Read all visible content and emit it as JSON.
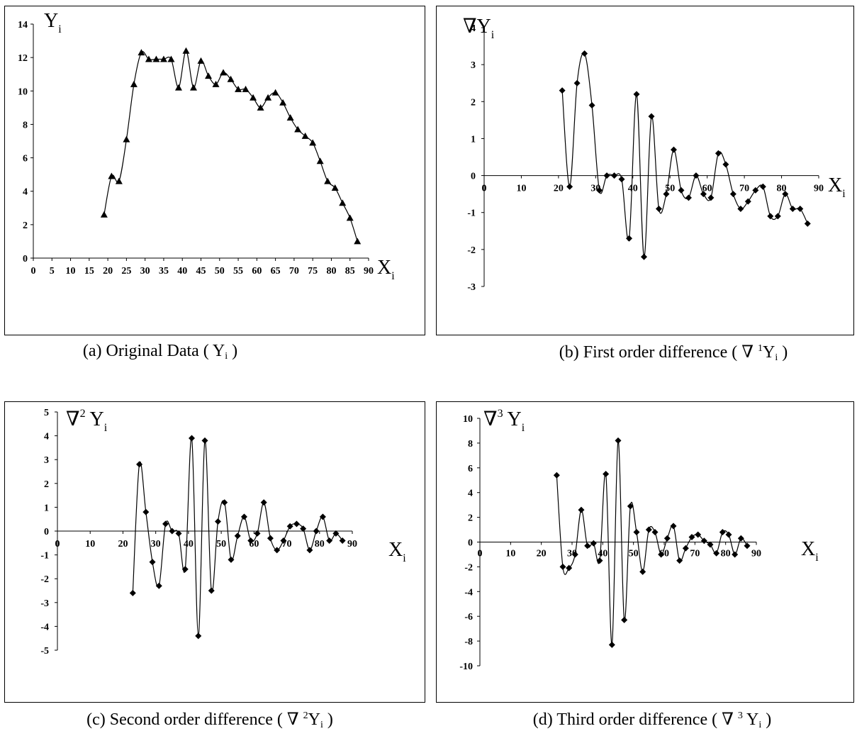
{
  "chart_data": [
    {
      "id": "a",
      "type": "line",
      "marker": "triangle",
      "caption": {
        "pre": "(a) Original Data ( Y",
        "sub": "i",
        "post": " )"
      },
      "ylabel": {
        "main": "Y",
        "sub": "i"
      },
      "xlabel": {
        "main": "X",
        "sub": "i"
      },
      "xlim": [
        0,
        90
      ],
      "ylim": [
        0,
        14
      ],
      "xticks": [
        0,
        5,
        10,
        15,
        20,
        25,
        30,
        35,
        40,
        45,
        50,
        55,
        60,
        65,
        70,
        75,
        80,
        85,
        90
      ],
      "yticks": [
        0,
        2,
        4,
        6,
        8,
        10,
        12,
        14
      ],
      "x": [
        19,
        21,
        23,
        25,
        27,
        29,
        31,
        33,
        35,
        37,
        39,
        41,
        43,
        45,
        47,
        49,
        51,
        53,
        55,
        57,
        59,
        61,
        63,
        65,
        67,
        69,
        71,
        73,
        75,
        77,
        79,
        81,
        83,
        85,
        87
      ],
      "y": [
        2.6,
        4.9,
        4.6,
        7.1,
        10.4,
        12.3,
        11.9,
        11.9,
        11.9,
        11.9,
        10.2,
        12.4,
        10.2,
        11.8,
        10.9,
        10.4,
        11.1,
        10.7,
        10.1,
        10.1,
        9.6,
        9.0,
        9.6,
        9.9,
        9.3,
        8.4,
        7.7,
        7.3,
        6.9,
        5.8,
        4.6,
        4.2,
        3.3,
        2.4,
        1.0
      ]
    },
    {
      "id": "b",
      "type": "line",
      "marker": "diamond",
      "caption": {
        "pre": "(b) First order difference ( ∇ ",
        "sup": "1",
        "mid": "Y",
        "sub": "i",
        "post": " )"
      },
      "ylabel": {
        "main": "∇Y",
        "sub": "i"
      },
      "xlabel": {
        "main": "X",
        "sub": "i"
      },
      "xlim": [
        0,
        90
      ],
      "ylim": [
        -3,
        4
      ],
      "xticks": [
        0,
        10,
        20,
        30,
        40,
        50,
        60,
        70,
        80,
        90
      ],
      "yticks": [
        -3,
        -2,
        -1,
        0,
        1,
        2,
        3,
        4
      ],
      "x": [
        21,
        23,
        25,
        27,
        29,
        31,
        33,
        35,
        37,
        39,
        41,
        43,
        45,
        47,
        49,
        51,
        53,
        55,
        57,
        59,
        61,
        63,
        65,
        67,
        69,
        71,
        73,
        75,
        77,
        79,
        81,
        83,
        85,
        87
      ],
      "y": [
        2.3,
        -0.3,
        2.5,
        3.3,
        1.9,
        -0.4,
        0.0,
        0.0,
        -0.1,
        -1.7,
        2.2,
        -2.2,
        1.6,
        -0.9,
        -0.5,
        0.7,
        -0.4,
        -0.6,
        0.0,
        -0.5,
        -0.6,
        0.6,
        0.3,
        -0.5,
        -0.9,
        -0.7,
        -0.4,
        -0.3,
        -1.1,
        -1.1,
        -0.5,
        -0.9,
        -0.9,
        -1.3
      ]
    },
    {
      "id": "c",
      "type": "line",
      "marker": "diamond",
      "caption": {
        "pre": "(c) Second order difference ( ∇ ",
        "sup": "2",
        "mid": "Y",
        "sub": "i",
        "post": " )"
      },
      "ylabel": {
        "main": "∇",
        "sup": "2",
        "main2": " Y",
        "sub": "i"
      },
      "xlabel": {
        "main": "X",
        "sub": "i"
      },
      "xlim": [
        0,
        90
      ],
      "ylim": [
        -5,
        5
      ],
      "xticks": [
        0,
        10,
        20,
        30,
        40,
        50,
        60,
        70,
        80,
        90
      ],
      "yticks": [
        -5,
        -4,
        -3,
        -2,
        -1,
        0,
        1,
        2,
        3,
        4,
        5
      ],
      "x": [
        23,
        25,
        27,
        29,
        31,
        33,
        35,
        37,
        39,
        41,
        43,
        45,
        47,
        49,
        51,
        53,
        55,
        57,
        59,
        61,
        63,
        65,
        67,
        69,
        71,
        73,
        75,
        77,
        79,
        81,
        83,
        85,
        87
      ],
      "y": [
        -2.6,
        2.8,
        0.8,
        -1.3,
        -2.3,
        0.3,
        0.0,
        -0.1,
        -1.6,
        3.9,
        -4.4,
        3.8,
        -2.5,
        0.4,
        1.2,
        -1.2,
        -0.2,
        0.6,
        -0.4,
        -0.1,
        1.2,
        -0.3,
        -0.8,
        -0.4,
        0.2,
        0.3,
        0.1,
        -0.8,
        0.0,
        0.6,
        -0.4,
        -0.1,
        -0.4
      ]
    },
    {
      "id": "d",
      "type": "line",
      "marker": "diamond",
      "caption": {
        "pre": "(d) Third order difference ( ∇ ",
        "sup": "3",
        "mid": " Y",
        "sub": "i",
        "post": " )"
      },
      "ylabel": {
        "main": "∇",
        "sup": "3",
        "main2": " Y",
        "sub": "i"
      },
      "xlabel": {
        "main": "X",
        "sub": "i"
      },
      "xlim": [
        0,
        90
      ],
      "ylim": [
        -10,
        10
      ],
      "xticks": [
        0,
        10,
        20,
        30,
        40,
        50,
        60,
        70,
        80,
        90
      ],
      "yticks": [
        -10,
        -8,
        -6,
        -4,
        -2,
        0,
        2,
        4,
        6,
        8,
        10
      ],
      "x": [
        25,
        27,
        29,
        31,
        33,
        35,
        37,
        39,
        41,
        43,
        45,
        47,
        49,
        51,
        53,
        55,
        57,
        59,
        61,
        63,
        65,
        67,
        69,
        71,
        73,
        75,
        77,
        79,
        81,
        83,
        85,
        87
      ],
      "y": [
        5.4,
        -2.0,
        -2.1,
        -1.0,
        2.6,
        -0.3,
        -0.1,
        -1.5,
        5.5,
        -8.3,
        8.2,
        -6.3,
        2.9,
        0.8,
        -2.4,
        1.0,
        0.8,
        -1.0,
        0.3,
        1.3,
        -1.5,
        -0.5,
        0.4,
        0.6,
        0.1,
        -0.2,
        -0.9,
        0.8,
        0.6,
        -1.0,
        0.3,
        -0.3
      ]
    }
  ]
}
